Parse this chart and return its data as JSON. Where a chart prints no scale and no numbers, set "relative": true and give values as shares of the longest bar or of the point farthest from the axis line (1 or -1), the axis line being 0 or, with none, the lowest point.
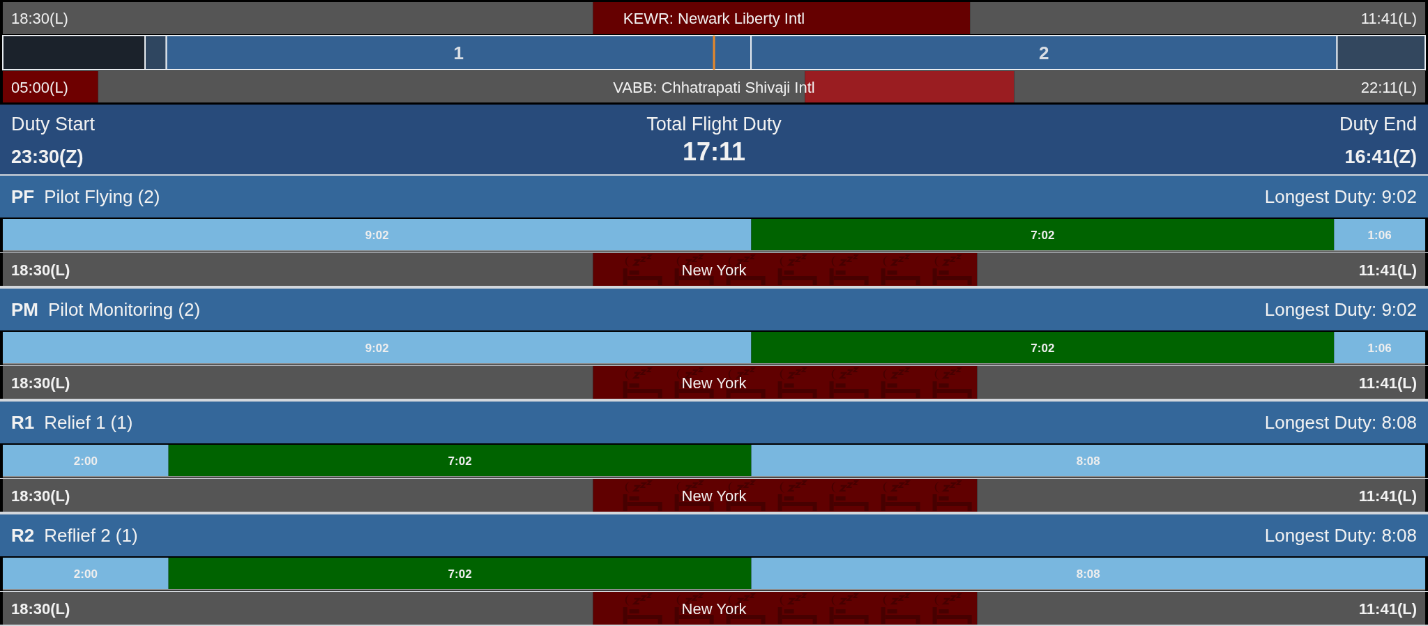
{
  "chart_data": [
    {
      "type": "bar",
      "orientation": "horizontal",
      "stacked": true,
      "relative": true,
      "categories": [
        null
      ],
      "annotations": [
        "18:30(L)",
        "KEWR: Newark Liberty Intl",
        "11:41(L)"
      ],
      "series": [
        {
          "color": "#555555",
          "values": [
            0.415
          ]
        },
        {
          "color": "#650000",
          "values": [
            0.265
          ]
        },
        {
          "color": "#555555",
          "values": [
            0.32
          ]
        }
      ]
    },
    {
      "type": "bar",
      "orientation": "horizontal",
      "stacked": true,
      "relative": true,
      "categories": [
        null
      ],
      "series": [
        {
          "color": "#1b222b",
          "values": [
            0.1
          ]
        },
        {
          "color": "#2f4660",
          "values": [
            0.015
          ]
        },
        {
          "name": "1",
          "color": "#346192",
          "values": [
            0.411
          ]
        },
        {
          "name": "2",
          "color": "#346192",
          "values": [
            0.412
          ]
        },
        {
          "color": "#33475e",
          "values": [
            0.062
          ]
        }
      ],
      "ref_lines": [
        {
          "axis": "x",
          "value": 0.5,
          "color": "#e8892a"
        }
      ]
    },
    {
      "type": "bar",
      "orientation": "horizontal",
      "stacked": true,
      "relative": true,
      "categories": [
        null
      ],
      "annotations": [
        "05:00(L)",
        "VABB: Chhatrapati Shivaji Intl",
        "22:11(L)"
      ],
      "series": [
        {
          "color": "#6e0000",
          "values": [
            0.067
          ]
        },
        {
          "color": "#555555",
          "values": [
            0.497
          ]
        },
        {
          "color": "#9a1d21",
          "values": [
            0.147
          ]
        },
        {
          "color": "#555555",
          "values": [
            0.289
          ]
        }
      ]
    },
    {
      "type": "other",
      "annotations": [
        "Duty Start",
        "23:30(Z)",
        "Total Flight Duty",
        "17:11",
        "Duty End",
        "16:41(Z)"
      ]
    },
    {
      "type": "bar",
      "orientation": "horizontal",
      "stacked": true,
      "title": "PF",
      "subtitle": "Pilot Flying (2)",
      "annotations": [
        "Longest Duty: 9:02"
      ],
      "categories": [
        null
      ],
      "series": [
        {
          "color": "#79b7df",
          "values": [
            9.033
          ],
          "value_labels": [
            "9:02"
          ]
        },
        {
          "color": "#006300",
          "values": [
            7.033
          ],
          "value_labels": [
            "7:02"
          ]
        },
        {
          "color": "#79b7df",
          "values": [
            1.1
          ],
          "value_labels": [
            "1:06"
          ]
        }
      ]
    },
    {
      "type": "bar",
      "orientation": "horizontal",
      "stacked": true,
      "relative": true,
      "categories": [
        null
      ],
      "annotations": [
        "18:30(L)",
        "New York",
        "11:41(L)"
      ],
      "series": [
        {
          "color": "#555555",
          "values": [
            0.415
          ]
        },
        {
          "color": "#600000",
          "values": [
            0.27
          ]
        },
        {
          "color": "#555555",
          "values": [
            0.315
          ]
        }
      ]
    },
    {
      "type": "bar",
      "orientation": "horizontal",
      "stacked": true,
      "title": "PM",
      "subtitle": "Pilot Monitoring (2)",
      "annotations": [
        "Longest Duty: 9:02"
      ],
      "categories": [
        null
      ],
      "series": [
        {
          "color": "#79b7df",
          "values": [
            9.033
          ],
          "value_labels": [
            "9:02"
          ]
        },
        {
          "color": "#006300",
          "values": [
            7.033
          ],
          "value_labels": [
            "7:02"
          ]
        },
        {
          "color": "#79b7df",
          "values": [
            1.1
          ],
          "value_labels": [
            "1:06"
          ]
        }
      ]
    },
    {
      "type": "bar",
      "orientation": "horizontal",
      "stacked": true,
      "relative": true,
      "categories": [
        null
      ],
      "annotations": [
        "18:30(L)",
        "New York",
        "11:41(L)"
      ],
      "series": [
        {
          "color": "#555555",
          "values": [
            0.415
          ]
        },
        {
          "color": "#600000",
          "values": [
            0.27
          ]
        },
        {
          "color": "#555555",
          "values": [
            0.315
          ]
        }
      ]
    },
    {
      "type": "bar",
      "orientation": "horizontal",
      "stacked": true,
      "title": "R1",
      "subtitle": "Relief 1 (1)",
      "annotations": [
        "Longest Duty: 8:08"
      ],
      "categories": [
        null
      ],
      "series": [
        {
          "color": "#79b7df",
          "values": [
            2
          ],
          "value_labels": [
            "2:00"
          ]
        },
        {
          "color": "#006300",
          "values": [
            7.033
          ],
          "value_labels": [
            "7:02"
          ]
        },
        {
          "color": "#79b7df",
          "values": [
            8.133
          ],
          "value_labels": [
            "8:08"
          ]
        }
      ]
    },
    {
      "type": "bar",
      "orientation": "horizontal",
      "stacked": true,
      "relative": true,
      "categories": [
        null
      ],
      "annotations": [
        "18:30(L)",
        "New York",
        "11:41(L)"
      ],
      "series": [
        {
          "color": "#555555",
          "values": [
            0.415
          ]
        },
        {
          "color": "#600000",
          "values": [
            0.27
          ]
        },
        {
          "color": "#555555",
          "values": [
            0.315
          ]
        }
      ]
    },
    {
      "type": "bar",
      "orientation": "horizontal",
      "stacked": true,
      "title": "R2",
      "subtitle": "Reflief 2 (1)",
      "annotations": [
        "Longest Duty: 8:08"
      ],
      "categories": [
        null
      ],
      "series": [
        {
          "color": "#79b7df",
          "values": [
            2
          ],
          "value_labels": [
            "2:00"
          ]
        },
        {
          "color": "#006300",
          "values": [
            7.033
          ],
          "value_labels": [
            "7:02"
          ]
        },
        {
          "color": "#79b7df",
          "values": [
            8.133
          ],
          "value_labels": [
            "8:08"
          ]
        }
      ]
    },
    {
      "type": "bar",
      "orientation": "horizontal",
      "stacked": true,
      "relative": true,
      "categories": [
        null
      ],
      "annotations": [
        "18:30(L)",
        "New York",
        "11:41(L)"
      ],
      "series": [
        {
          "color": "#555555",
          "values": [
            0.415
          ]
        },
        {
          "color": "#600000",
          "values": [
            0.27
          ]
        },
        {
          "color": "#555555",
          "values": [
            0.315
          ]
        }
      ]
    }
  ]
}
